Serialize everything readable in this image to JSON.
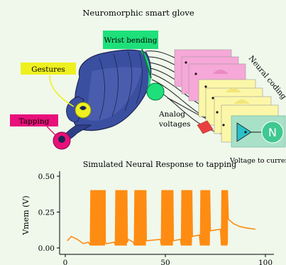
{
  "diagram": {
    "title": "Neuromorphic smart glove",
    "labels": {
      "wrist_bending": "Wrist bending",
      "gestures": "Gestures",
      "tapping": "Tapping",
      "analog_voltages": [
        "Analog",
        "voltages"
      ],
      "neural_coding": "Neural coding",
      "voltage_to_current": "Voltage to current",
      "neuron_symbol": "N"
    },
    "colors": {
      "wrist_green": "#1ee07a",
      "gestures_yellow": "#eef020",
      "tapping_pink": "#e8107a",
      "glove_blue": "#3a4fa0",
      "card_pink": "#f6a8d8",
      "card_yellow": "#fcf7a8",
      "converter_bg": "#a8e0c8",
      "neuron_green": "#3fc890",
      "amplifier_teal": "#2cc0c8",
      "red_chip": "#e84040"
    }
  },
  "chart_data": {
    "type": "line",
    "title": "Simulated Neural Response to tapping",
    "xlabel": "",
    "ylabel": "Vmem (V)",
    "xlim": [
      0,
      100
    ],
    "ylim": [
      0,
      0.5
    ],
    "xticks": [
      "0",
      "50",
      "100"
    ],
    "yticks": [
      "0.00",
      "0.25",
      "0.50"
    ],
    "color": "#ff8c12",
    "burst_windows": [
      [
        12.5,
        20
      ],
      [
        25,
        31
      ],
      [
        34.5,
        40
      ],
      [
        48,
        53.5
      ],
      [
        58,
        63
      ],
      [
        67.5,
        72
      ],
      [
        78,
        81
      ]
    ],
    "series": [
      {
        "values": {
          "rest": [
            [
              1,
              0.05
            ],
            [
              3,
              0.08
            ],
            [
              6,
              0.06
            ],
            [
              9,
              0.03
            ],
            [
              11.5,
              0.04
            ]
          ],
          "between": [
            [
              20.5,
              0.03
            ],
            [
              24.5,
              0.04
            ],
            [
              31.5,
              0.06
            ],
            [
              34,
              0.04
            ],
            [
              40.5,
              0.05
            ],
            [
              47.5,
              0.06
            ],
            [
              54,
              0.05
            ],
            [
              57.5,
              0.06
            ],
            [
              63.5,
              0.08
            ],
            [
              67,
              0.09
            ],
            [
              72.5,
              0.12
            ],
            [
              77.5,
              0.13
            ]
          ],
          "tail": [
            [
              81.5,
              0.2
            ],
            [
              84,
              0.17
            ],
            [
              87,
              0.15
            ],
            [
              90,
              0.14
            ],
            [
              95,
              0.13
            ]
          ],
          "spike_peak": 0.4
        }
      }
    ]
  }
}
